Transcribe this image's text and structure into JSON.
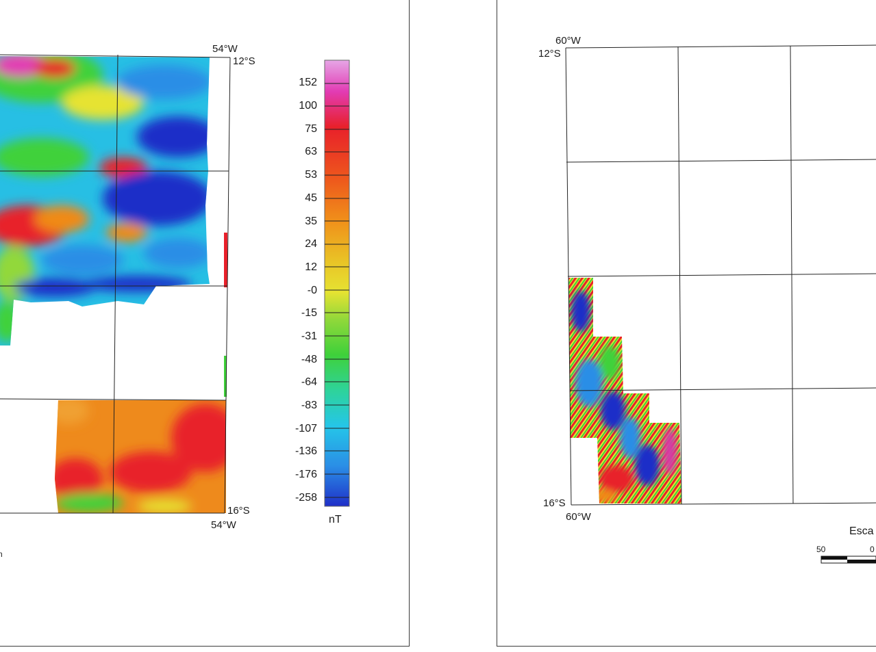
{
  "left_map": {
    "corner_labels": {
      "top_lon": "54°W",
      "top_lat": "12°S",
      "bottom_lat": "16°S",
      "bottom_lon": "54°W"
    },
    "cut_label": "n",
    "colors": {
      "deep_blue": "#1f2fc8",
      "cyan": "#25c6e8",
      "green": "#3fd13a",
      "yellow": "#e6e332",
      "orange": "#f08a18",
      "red": "#e8202a",
      "magenta": "#d43aa8"
    }
  },
  "colorbar": {
    "unit": "nT",
    "ticks": [
      "152",
      "100",
      "75",
      "63",
      "53",
      "45",
      "35",
      "24",
      "12",
      "-0",
      "-15",
      "-31",
      "-48",
      "-64",
      "-83",
      "-107",
      "-136",
      "-176",
      "-258"
    ],
    "gradient_top_to_bottom": [
      "#e6a6e6",
      "#e23cb4",
      "#e8202a",
      "#ee5a1c",
      "#f0901a",
      "#e9c326",
      "#e6e332",
      "#92d83a",
      "#3fd13a",
      "#2ed39a",
      "#25c6e8",
      "#2a8ee6",
      "#1f2fc8"
    ]
  },
  "right_map": {
    "corner_labels": {
      "top_lon": "60°W",
      "top_lat": "12°S",
      "bottom_lat": "16°S",
      "bottom_lon": "60°W"
    },
    "scale": {
      "title": "Esca",
      "left_value": "50",
      "right_value": "0"
    }
  }
}
